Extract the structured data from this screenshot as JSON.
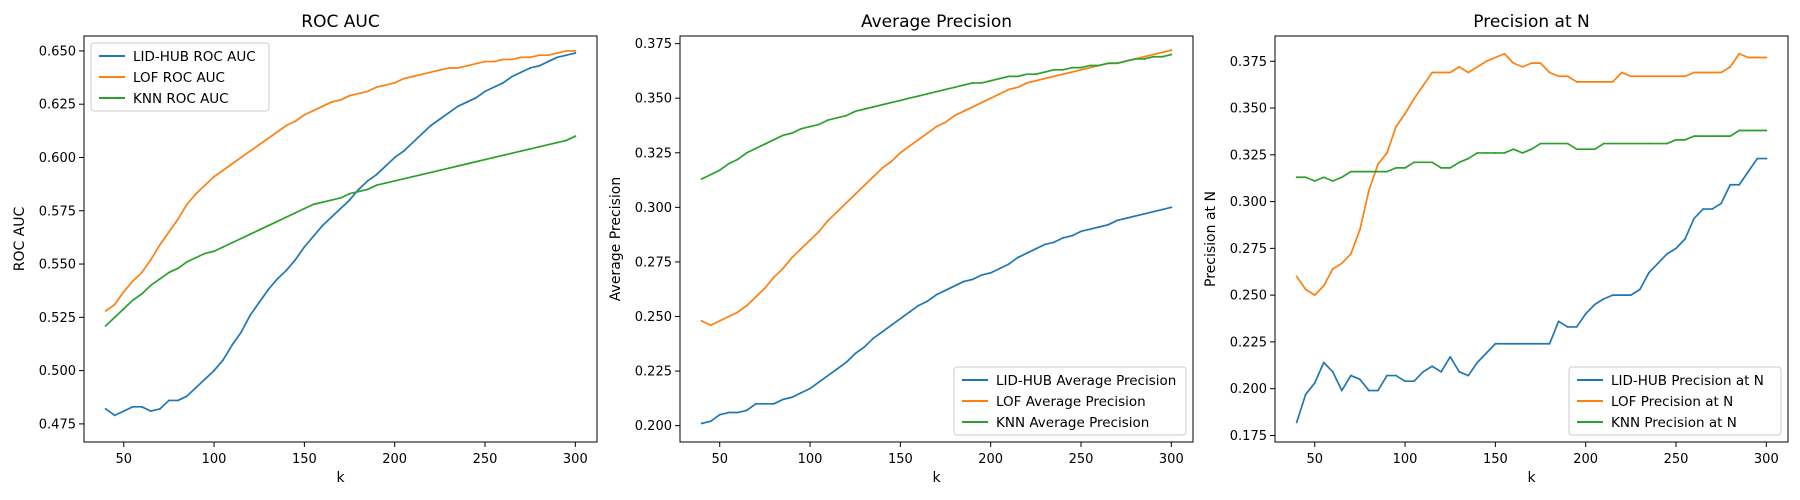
{
  "chart_data": [
    {
      "type": "line",
      "title": "ROC AUC",
      "xlabel": "k",
      "ylabel": "ROC AUC",
      "xlim": [
        28,
        312
      ],
      "ylim": [
        0.4665,
        0.657
      ],
      "xticks": [
        50,
        100,
        150,
        200,
        250,
        300
      ],
      "yticks": [
        0.475,
        0.5,
        0.525,
        0.55,
        0.575,
        0.6,
        0.625,
        0.65
      ],
      "ytick_decimals": 3,
      "legend_position": "top-left",
      "x": [
        40,
        45,
        50,
        55,
        60,
        65,
        70,
        75,
        80,
        85,
        90,
        95,
        100,
        105,
        110,
        115,
        120,
        125,
        130,
        135,
        140,
        145,
        150,
        155,
        160,
        165,
        170,
        175,
        180,
        185,
        190,
        195,
        200,
        205,
        210,
        215,
        220,
        225,
        230,
        235,
        240,
        245,
        250,
        255,
        260,
        265,
        270,
        275,
        280,
        285,
        290,
        295,
        300
      ],
      "series": [
        {
          "name": "LID-HUB ROC AUC",
          "color": "#1f77b4",
          "values": [
            0.482,
            0.479,
            0.481,
            0.483,
            0.483,
            0.481,
            0.482,
            0.486,
            0.486,
            0.488,
            0.492,
            0.496,
            0.5,
            0.505,
            0.512,
            0.518,
            0.526,
            0.532,
            0.538,
            0.543,
            0.547,
            0.552,
            0.558,
            0.563,
            0.568,
            0.572,
            0.576,
            0.58,
            0.585,
            0.589,
            0.592,
            0.596,
            0.6,
            0.603,
            0.607,
            0.611,
            0.615,
            0.618,
            0.621,
            0.624,
            0.626,
            0.628,
            0.631,
            0.633,
            0.635,
            0.638,
            0.64,
            0.642,
            0.643,
            0.645,
            0.647,
            0.648,
            0.649
          ]
        },
        {
          "name": "LOF ROC AUC",
          "color": "#ff7f0e",
          "values": [
            0.528,
            0.531,
            0.537,
            0.542,
            0.546,
            0.552,
            0.559,
            0.565,
            0.571,
            0.578,
            0.583,
            0.587,
            0.591,
            0.594,
            0.597,
            0.6,
            0.603,
            0.606,
            0.609,
            0.612,
            0.615,
            0.617,
            0.62,
            0.622,
            0.624,
            0.626,
            0.627,
            0.629,
            0.63,
            0.631,
            0.633,
            0.634,
            0.635,
            0.637,
            0.638,
            0.639,
            0.64,
            0.641,
            0.642,
            0.642,
            0.643,
            0.644,
            0.645,
            0.645,
            0.646,
            0.646,
            0.647,
            0.647,
            0.648,
            0.648,
            0.649,
            0.65,
            0.65
          ]
        },
        {
          "name": "KNN ROC AUC",
          "color": "#2ca02c",
          "values": [
            0.521,
            0.525,
            0.529,
            0.533,
            0.536,
            0.54,
            0.543,
            0.546,
            0.548,
            0.551,
            0.553,
            0.555,
            0.556,
            0.558,
            0.56,
            0.562,
            0.564,
            0.566,
            0.568,
            0.57,
            0.572,
            0.574,
            0.576,
            0.578,
            0.579,
            0.58,
            0.581,
            0.583,
            0.584,
            0.585,
            0.587,
            0.588,
            0.589,
            0.59,
            0.591,
            0.592,
            0.593,
            0.594,
            0.595,
            0.596,
            0.597,
            0.598,
            0.599,
            0.6,
            0.601,
            0.602,
            0.603,
            0.604,
            0.605,
            0.606,
            0.607,
            0.608,
            0.61
          ]
        }
      ]
    },
    {
      "type": "line",
      "title": "Average Precision",
      "xlabel": "k",
      "ylabel": "Average Precision",
      "xlim": [
        28,
        312
      ],
      "ylim": [
        0.1925,
        0.3785
      ],
      "xticks": [
        50,
        100,
        150,
        200,
        250,
        300
      ],
      "yticks": [
        0.2,
        0.225,
        0.25,
        0.275,
        0.3,
        0.325,
        0.35,
        0.375
      ],
      "ytick_decimals": 3,
      "legend_position": "bottom-right",
      "x": [
        40,
        45,
        50,
        55,
        60,
        65,
        70,
        75,
        80,
        85,
        90,
        95,
        100,
        105,
        110,
        115,
        120,
        125,
        130,
        135,
        140,
        145,
        150,
        155,
        160,
        165,
        170,
        175,
        180,
        185,
        190,
        195,
        200,
        205,
        210,
        215,
        220,
        225,
        230,
        235,
        240,
        245,
        250,
        255,
        260,
        265,
        270,
        275,
        280,
        285,
        290,
        295,
        300
      ],
      "series": [
        {
          "name": "LID-HUB Average Precision",
          "color": "#1f77b4",
          "values": [
            0.201,
            0.202,
            0.205,
            0.206,
            0.206,
            0.207,
            0.21,
            0.21,
            0.21,
            0.212,
            0.213,
            0.215,
            0.217,
            0.22,
            0.223,
            0.226,
            0.229,
            0.233,
            0.236,
            0.24,
            0.243,
            0.246,
            0.249,
            0.252,
            0.255,
            0.257,
            0.26,
            0.262,
            0.264,
            0.266,
            0.267,
            0.269,
            0.27,
            0.272,
            0.274,
            0.277,
            0.279,
            0.281,
            0.283,
            0.284,
            0.286,
            0.287,
            0.289,
            0.29,
            0.291,
            0.292,
            0.294,
            0.295,
            0.296,
            0.297,
            0.298,
            0.299,
            0.3
          ]
        },
        {
          "name": "LOF Average Precision",
          "color": "#ff7f0e",
          "values": [
            0.248,
            0.246,
            0.248,
            0.25,
            0.252,
            0.255,
            0.259,
            0.263,
            0.268,
            0.272,
            0.277,
            0.281,
            0.285,
            0.289,
            0.294,
            0.298,
            0.302,
            0.306,
            0.31,
            0.314,
            0.318,
            0.321,
            0.325,
            0.328,
            0.331,
            0.334,
            0.337,
            0.339,
            0.342,
            0.344,
            0.346,
            0.348,
            0.35,
            0.352,
            0.354,
            0.355,
            0.357,
            0.358,
            0.359,
            0.36,
            0.361,
            0.362,
            0.363,
            0.364,
            0.365,
            0.366,
            0.366,
            0.367,
            0.368,
            0.369,
            0.37,
            0.371,
            0.372
          ]
        },
        {
          "name": "KNN Average Precision",
          "color": "#2ca02c",
          "values": [
            0.313,
            0.315,
            0.317,
            0.32,
            0.322,
            0.325,
            0.327,
            0.329,
            0.331,
            0.333,
            0.334,
            0.336,
            0.337,
            0.338,
            0.34,
            0.341,
            0.342,
            0.344,
            0.345,
            0.346,
            0.347,
            0.348,
            0.349,
            0.35,
            0.351,
            0.352,
            0.353,
            0.354,
            0.355,
            0.356,
            0.357,
            0.357,
            0.358,
            0.359,
            0.36,
            0.36,
            0.361,
            0.361,
            0.362,
            0.363,
            0.363,
            0.364,
            0.364,
            0.365,
            0.365,
            0.366,
            0.366,
            0.367,
            0.368,
            0.368,
            0.369,
            0.369,
            0.37
          ]
        }
      ]
    },
    {
      "type": "line",
      "title": "Precision at N",
      "xlabel": "k",
      "ylabel": "Precision at N",
      "xlim": [
        28,
        312
      ],
      "ylim": [
        0.1715,
        0.3885
      ],
      "xticks": [
        50,
        100,
        150,
        200,
        250,
        300
      ],
      "yticks": [
        0.175,
        0.2,
        0.225,
        0.25,
        0.275,
        0.3,
        0.325,
        0.35,
        0.375
      ],
      "ytick_decimals": 3,
      "legend_position": "bottom-right",
      "x": [
        40,
        45,
        50,
        55,
        60,
        65,
        70,
        75,
        80,
        85,
        90,
        95,
        100,
        105,
        110,
        115,
        120,
        125,
        130,
        135,
        140,
        145,
        150,
        155,
        160,
        165,
        170,
        175,
        180,
        185,
        190,
        195,
        200,
        205,
        210,
        215,
        220,
        225,
        230,
        235,
        240,
        245,
        250,
        255,
        260,
        265,
        270,
        275,
        280,
        285,
        290,
        295,
        300
      ],
      "series": [
        {
          "name": "LID-HUB Precision at N",
          "color": "#1f77b4",
          "values": [
            0.182,
            0.197,
            0.203,
            0.214,
            0.209,
            0.199,
            0.207,
            0.205,
            0.199,
            0.199,
            0.207,
            0.207,
            0.204,
            0.204,
            0.209,
            0.212,
            0.209,
            0.217,
            0.209,
            0.207,
            0.214,
            0.219,
            0.224,
            0.224,
            0.224,
            0.224,
            0.224,
            0.224,
            0.224,
            0.236,
            0.233,
            0.233,
            0.24,
            0.245,
            0.248,
            0.25,
            0.25,
            0.25,
            0.253,
            0.262,
            0.267,
            0.272,
            0.275,
            0.28,
            0.291,
            0.296,
            0.296,
            0.299,
            0.309,
            0.309,
            0.316,
            0.323,
            0.323
          ]
        },
        {
          "name": "LOF Precision at N",
          "color": "#ff7f0e",
          "values": [
            0.26,
            0.253,
            0.25,
            0.255,
            0.264,
            0.267,
            0.272,
            0.285,
            0.306,
            0.32,
            0.326,
            0.34,
            0.347,
            0.355,
            0.362,
            0.369,
            0.369,
            0.369,
            0.372,
            0.369,
            0.372,
            0.375,
            0.377,
            0.379,
            0.374,
            0.372,
            0.374,
            0.374,
            0.369,
            0.367,
            0.367,
            0.364,
            0.364,
            0.364,
            0.364,
            0.364,
            0.369,
            0.367,
            0.367,
            0.367,
            0.367,
            0.367,
            0.367,
            0.367,
            0.369,
            0.369,
            0.369,
            0.369,
            0.372,
            0.379,
            0.377,
            0.377,
            0.377
          ]
        },
        {
          "name": "KNN Precision at N",
          "color": "#2ca02c",
          "values": [
            0.313,
            0.313,
            0.311,
            0.313,
            0.311,
            0.313,
            0.316,
            0.316,
            0.316,
            0.316,
            0.316,
            0.318,
            0.318,
            0.321,
            0.321,
            0.321,
            0.318,
            0.318,
            0.321,
            0.323,
            0.326,
            0.326,
            0.326,
            0.326,
            0.328,
            0.326,
            0.328,
            0.331,
            0.331,
            0.331,
            0.331,
            0.328,
            0.328,
            0.328,
            0.331,
            0.331,
            0.331,
            0.331,
            0.331,
            0.331,
            0.331,
            0.331,
            0.333,
            0.333,
            0.335,
            0.335,
            0.335,
            0.335,
            0.335,
            0.338,
            0.338,
            0.338,
            0.338
          ]
        }
      ]
    }
  ]
}
